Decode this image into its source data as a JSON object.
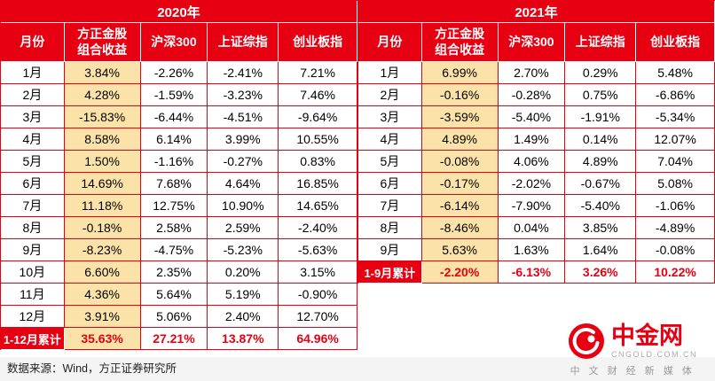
{
  "colors": {
    "red": "#e60012",
    "yellow": "#fbe2a8",
    "total_text": "#e60012"
  },
  "chart_data": [
    {
      "type": "table",
      "title": "2020年",
      "columns": [
        "月份",
        "方正金股\n组合收益",
        "沪深300",
        "上证综指",
        "创业板指"
      ],
      "rows": [
        [
          "1月",
          "3.84%",
          "-2.26%",
          "-2.41%",
          "7.21%"
        ],
        [
          "2月",
          "4.28%",
          "-1.59%",
          "-3.23%",
          "7.46%"
        ],
        [
          "3月",
          "-15.83%",
          "-6.44%",
          "-4.51%",
          "-9.64%"
        ],
        [
          "4月",
          "8.58%",
          "6.14%",
          "3.99%",
          "10.55%"
        ],
        [
          "5月",
          "1.50%",
          "-1.16%",
          "-0.27%",
          "0.83%"
        ],
        [
          "6月",
          "14.69%",
          "7.68%",
          "4.64%",
          "16.85%"
        ],
        [
          "7月",
          "11.18%",
          "12.75%",
          "10.90%",
          "14.65%"
        ],
        [
          "8月",
          "-0.18%",
          "2.58%",
          "2.59%",
          "-2.40%"
        ],
        [
          "9月",
          "-8.23%",
          "-4.75%",
          "-5.23%",
          "-5.63%"
        ],
        [
          "10月",
          "6.60%",
          "2.35%",
          "0.20%",
          "3.15%"
        ],
        [
          "11月",
          "4.36%",
          "5.64%",
          "5.19%",
          "-0.90%"
        ],
        [
          "12月",
          "3.91%",
          "5.06%",
          "2.40%",
          "12.70%"
        ]
      ],
      "total": [
        "1-12月累计",
        "35.63%",
        "27.21%",
        "13.87%",
        "64.96%"
      ]
    },
    {
      "type": "table",
      "title": "2021年",
      "columns": [
        "月份",
        "方正金股\n组合收益",
        "沪深300",
        "上证综指",
        "创业板指"
      ],
      "rows": [
        [
          "1月",
          "6.99%",
          "2.70%",
          "0.29%",
          "5.48%"
        ],
        [
          "2月",
          "-0.16%",
          "-0.28%",
          "0.75%",
          "-6.86%"
        ],
        [
          "3月",
          "-3.59%",
          "-5.40%",
          "-1.91%",
          "-5.34%"
        ],
        [
          "4月",
          "4.89%",
          "1.49%",
          "0.14%",
          "12.07%"
        ],
        [
          "5月",
          "-0.08%",
          "4.06%",
          "4.89%",
          "7.04%"
        ],
        [
          "6月",
          "-0.17%",
          "-2.02%",
          "-0.67%",
          "5.08%"
        ],
        [
          "7月",
          "-6.14%",
          "-7.90%",
          "-5.40%",
          "-1.06%"
        ],
        [
          "8月",
          "-8.46%",
          "0.04%",
          "3.85%",
          "-4.89%"
        ],
        [
          "9月",
          "5.63%",
          "1.63%",
          "1.64%",
          "-0.08%"
        ]
      ],
      "total": [
        "1-9月累计",
        "-2.20%",
        "-6.13%",
        "3.26%",
        "10.22%"
      ]
    }
  ],
  "source": "数据来源：Wind，方正证券研究所",
  "logo": {
    "name": "中金网",
    "domain": "CNGOLD.COM.CN",
    "tagline": "中 文 财 经 新 媒 体"
  }
}
